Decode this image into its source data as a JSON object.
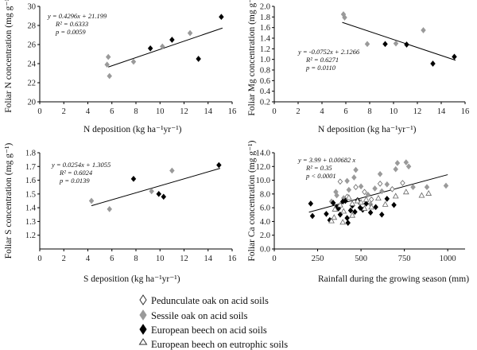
{
  "chart_data": [
    {
      "type": "scatter",
      "xlabel": "N deposition (kg ha⁻¹yr⁻¹)",
      "ylabel": "Foliar N concentration (mg g⁻¹)",
      "xlim": [
        0,
        16
      ],
      "ylim": [
        20,
        30
      ],
      "xticks": [
        0,
        2,
        4,
        6,
        8,
        10,
        12,
        14,
        16
      ],
      "yticks": [
        20,
        22,
        24,
        26,
        28,
        30
      ],
      "annotations": [
        "y = 0.4296x + 21.199",
        "R² = 0.6333",
        "p = 0.0059"
      ],
      "trend": {
        "slope": 0.4296,
        "intercept": 21.199,
        "x_range": [
          5.7,
          15.2
        ]
      },
      "series": [
        {
          "legend_index": 1,
          "points": [
            [
              5.7,
              24.7
            ],
            [
              5.8,
              22.7
            ],
            [
              5.6,
              23.9
            ],
            [
              7.8,
              24.2
            ],
            [
              10.2,
              25.8
            ],
            [
              12.5,
              27.2
            ]
          ]
        },
        {
          "legend_index": 2,
          "points": [
            [
              9.2,
              25.6
            ],
            [
              11.0,
              26.5
            ],
            [
              13.2,
              24.5
            ],
            [
              15.1,
              28.9
            ]
          ]
        }
      ]
    },
    {
      "type": "scatter",
      "xlabel": "N deposition (kg ha⁻¹yr⁻¹)",
      "ylabel": "Foliar Mg concentration (mg g⁻¹)",
      "xlim": [
        0,
        16
      ],
      "ylim": [
        0.2,
        2.0
      ],
      "xticks": [
        0,
        2,
        4,
        6,
        8,
        10,
        12,
        14,
        16
      ],
      "yticks": [
        0.2,
        0.4,
        0.6,
        0.8,
        1.0,
        1.2,
        1.4,
        1.6,
        1.8,
        2.0
      ],
      "annotations": [
        "y = -0.0752x + 2.1266",
        "R² = 0.6271",
        "p = 0.0110"
      ],
      "trend": {
        "slope": -0.0752,
        "intercept": 2.1266,
        "x_range": [
          5.7,
          15.2
        ]
      },
      "series": [
        {
          "legend_index": 1,
          "points": [
            [
              5.8,
              1.85
            ],
            [
              5.9,
              1.79
            ],
            [
              7.8,
              1.29
            ],
            [
              10.2,
              1.3
            ],
            [
              12.5,
              1.55
            ]
          ]
        },
        {
          "legend_index": 2,
          "points": [
            [
              9.3,
              1.29
            ],
            [
              11.1,
              1.28
            ],
            [
              13.3,
              0.92
            ],
            [
              15.1,
              1.05
            ]
          ]
        }
      ]
    },
    {
      "type": "scatter",
      "xlabel": "S deposition (kg ha⁻¹yr⁻¹)",
      "ylabel": "Foliar S concentration (mg g⁻¹)",
      "xlim": [
        0,
        16
      ],
      "ylim": [
        1.1,
        1.8
      ],
      "xticks": [
        0,
        2,
        4,
        6,
        8,
        10,
        12,
        14,
        16
      ],
      "yticks": [
        1.2,
        1.3,
        1.4,
        1.5,
        1.6,
        1.7,
        1.8
      ],
      "annotations": [
        "y = 0.0254x + 1.3055",
        "R² = 0.6024",
        "p = 0.0139"
      ],
      "trend": {
        "slope": 0.0254,
        "intercept": 1.3055,
        "x_range": [
          4.3,
          15.0
        ]
      },
      "series": [
        {
          "legend_index": 1,
          "points": [
            [
              4.3,
              1.45
            ],
            [
              5.8,
              1.39
            ],
            [
              9.3,
              1.52
            ],
            [
              11.0,
              1.67
            ]
          ]
        },
        {
          "legend_index": 2,
          "points": [
            [
              7.8,
              1.61
            ],
            [
              9.9,
              1.5
            ],
            [
              10.3,
              1.48
            ],
            [
              14.9,
              1.71
            ]
          ]
        }
      ]
    },
    {
      "type": "scatter",
      "xlabel": "Rainfall during the growing season (mm)",
      "ylabel": "Foliar Ca concentration (mg g⁻¹)",
      "xlim": [
        0,
        1100
      ],
      "ylim": [
        0,
        14
      ],
      "xticks": [
        0,
        250,
        500,
        750,
        1000
      ],
      "yticks": [
        0.0,
        2.0,
        4.0,
        6.0,
        8.0,
        10.0,
        12.0,
        14.0
      ],
      "annotations": [
        "y = 3.99 + 0.00682 x",
        "R² = 0.35",
        "p < 0.0001"
      ],
      "trend": {
        "slope": 0.00682,
        "intercept": 3.99,
        "x_range": [
          200,
          1000
        ]
      },
      "series": [
        {
          "legend_index": 0,
          "points": [
            [
              380,
              9.8
            ],
            [
              420,
              7.6
            ],
            [
              470,
              9.0
            ],
            [
              520,
              8.3
            ],
            [
              560,
              7.2
            ],
            [
              610,
              9.5
            ],
            [
              680,
              8.7
            ],
            [
              740,
              9.6
            ]
          ]
        },
        {
          "legend_index": 1,
          "points": [
            [
              330,
              6.9
            ],
            [
              360,
              7.8
            ],
            [
              400,
              7.4
            ],
            [
              430,
              8.6
            ],
            [
              460,
              10.4
            ],
            [
              470,
              11.5
            ],
            [
              500,
              9.1
            ],
            [
              540,
              7.9
            ],
            [
              580,
              8.8
            ],
            [
              620,
              8.4
            ],
            [
              650,
              9.4
            ],
            [
              700,
              11.6
            ],
            [
              710,
              12.5
            ],
            [
              760,
              12.6
            ],
            [
              775,
              12.0
            ],
            [
              800,
              9.0
            ],
            [
              880,
              9.0
            ],
            [
              990,
              9.2
            ],
            [
              420,
              9.9
            ],
            [
              610,
              10.9
            ],
            [
              490,
              6.8
            ],
            [
              555,
              6.5
            ],
            [
              355,
              8.3
            ]
          ]
        },
        {
          "legend_index": 2,
          "points": [
            [
              210,
              6.6
            ],
            [
              220,
              4.8
            ],
            [
              300,
              5.1
            ],
            [
              320,
              4.2
            ],
            [
              340,
              6.7
            ],
            [
              360,
              6.1
            ],
            [
              370,
              5.9
            ],
            [
              380,
              5.0
            ],
            [
              395,
              6.9
            ],
            [
              410,
              7.0
            ],
            [
              420,
              4.5
            ],
            [
              425,
              3.8
            ],
            [
              440,
              5.6
            ],
            [
              450,
              6.3
            ],
            [
              465,
              5.4
            ],
            [
              480,
              7.1
            ],
            [
              495,
              6.0
            ],
            [
              510,
              5.7
            ],
            [
              530,
              6.6
            ],
            [
              555,
              5.3
            ],
            [
              585,
              6.1
            ],
            [
              620,
              5.0
            ],
            [
              650,
              7.3
            ],
            [
              690,
              6.4
            ]
          ]
        },
        {
          "legend_index": 3,
          "points": [
            [
              330,
              4.1
            ],
            [
              350,
              5.8
            ],
            [
              380,
              6.4
            ],
            [
              400,
              5.5
            ],
            [
              430,
              7.5
            ],
            [
              450,
              6.6
            ],
            [
              480,
              7.0
            ],
            [
              500,
              6.8
            ],
            [
              530,
              7.2
            ],
            [
              560,
              6.1
            ],
            [
              600,
              7.4
            ],
            [
              640,
              6.5
            ],
            [
              700,
              7.7
            ],
            [
              760,
              8.3
            ],
            [
              850,
              7.8
            ],
            [
              890,
              8.1
            ],
            [
              450,
              4.9
            ],
            [
              520,
              5.9
            ],
            [
              395,
              3.9
            ],
            [
              345,
              4.6
            ]
          ]
        }
      ]
    }
  ],
  "legend": [
    {
      "label": "Pedunculate oak on acid soils",
      "marker": "open-diamond"
    },
    {
      "label": "Sessile oak on acid soils",
      "marker": "grey-diamond"
    },
    {
      "label": "European beech on acid soils",
      "marker": "black-diamond"
    },
    {
      "label": "European beech on eutrophic soils",
      "marker": "open-triangle"
    }
  ],
  "colors": {
    "axis": "#000000",
    "grey_marker": "#9a9a9a",
    "black_marker": "#000000",
    "open_marker_stroke": "#666666"
  }
}
